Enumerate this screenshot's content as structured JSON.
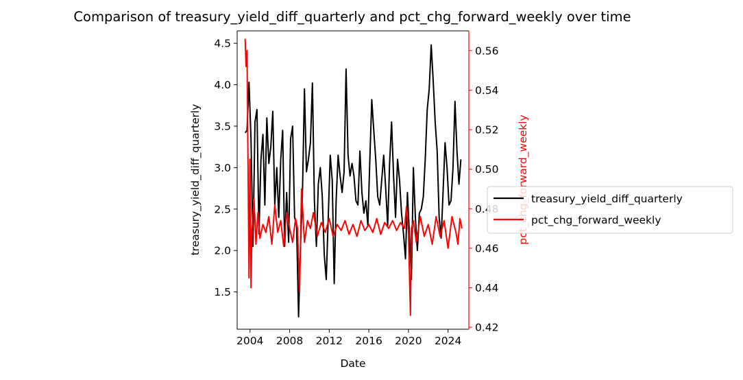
{
  "chart_data": {
    "type": "line",
    "title": "Comparison of treasury_yield_diff_quarterly and pct_chg_forward_weekly over time",
    "xlabel": "Date",
    "ylabel_left": "treasury_yield_diff_quarterly",
    "ylabel_right": "pct_chg_forward_weekly",
    "x_ticks": [
      "2004",
      "2008",
      "2012",
      "2016",
      "2020",
      "2024"
    ],
    "x_tick_years": [
      2004,
      2008,
      2012,
      2016,
      2020,
      2024
    ],
    "xlim": [
      2002.7,
      2026.1
    ],
    "y_left_ticks": [
      "1.5",
      "2.0",
      "2.5",
      "3.0",
      "3.5",
      "4.0",
      "4.5"
    ],
    "y_left_tick_values": [
      1.5,
      2.0,
      2.5,
      3.0,
      3.5,
      4.0,
      4.5
    ],
    "y_left_lim": [
      1.05,
      4.65
    ],
    "y_right_ticks": [
      "0.42",
      "0.44",
      "0.46",
      "0.48",
      "0.50",
      "0.52",
      "0.54",
      "0.56"
    ],
    "y_right_tick_values": [
      0.42,
      0.44,
      0.46,
      0.48,
      0.5,
      0.52,
      0.54,
      0.56
    ],
    "y_right_lim": [
      0.419,
      0.57
    ],
    "legend_position": "right-outside",
    "grid": false,
    "series": [
      {
        "name": "treasury_yield_diff_quarterly",
        "axis": "left",
        "color": "#000000",
        "x": [
          2003.5,
          2003.7,
          2003.9,
          2004.1,
          2004.3,
          2004.5,
          2004.7,
          2004.9,
          2005.1,
          2005.3,
          2005.5,
          2005.7,
          2005.9,
          2006.1,
          2006.3,
          2006.5,
          2006.7,
          2006.9,
          2007.1,
          2007.3,
          2007.5,
          2007.7,
          2007.9,
          2008.1,
          2008.3,
          2008.5,
          2008.7,
          2008.9,
          2009.1,
          2009.3,
          2009.5,
          2009.7,
          2009.9,
          2010.1,
          2010.3,
          2010.5,
          2010.7,
          2010.9,
          2011.1,
          2011.3,
          2011.5,
          2011.7,
          2011.9,
          2012.1,
          2012.3,
          2012.5,
          2012.7,
          2012.9,
          2013.1,
          2013.3,
          2013.5,
          2013.7,
          2013.9,
          2014.1,
          2014.3,
          2014.5,
          2014.7,
          2014.9,
          2015.1,
          2015.3,
          2015.5,
          2015.7,
          2015.9,
          2016.1,
          2016.3,
          2016.5,
          2016.7,
          2016.9,
          2017.1,
          2017.3,
          2017.5,
          2017.7,
          2017.9,
          2018.1,
          2018.3,
          2018.5,
          2018.7,
          2018.9,
          2019.1,
          2019.3,
          2019.5,
          2019.7,
          2019.9,
          2020.1,
          2020.3,
          2020.5,
          2020.7,
          2020.9,
          2021.1,
          2021.3,
          2021.5,
          2021.7,
          2021.9,
          2022.1,
          2022.3,
          2022.5,
          2022.7,
          2022.9,
          2023.1,
          2023.3,
          2023.5,
          2023.7,
          2023.9,
          2024.1,
          2024.3,
          2024.5,
          2024.7,
          2024.9,
          2025.1,
          2025.3
        ],
        "values": [
          3.42,
          3.45,
          4.03,
          3.35,
          2.05,
          3.55,
          3.7,
          2.2,
          3.1,
          3.4,
          2.55,
          3.6,
          3.05,
          3.25,
          3.68,
          2.55,
          3.0,
          2.4,
          3.1,
          3.45,
          2.05,
          2.7,
          2.1,
          3.35,
          3.5,
          2.4,
          2.3,
          1.2,
          2.05,
          2.7,
          3.95,
          2.95,
          3.1,
          3.3,
          4.02,
          2.6,
          2.05,
          2.8,
          3.0,
          2.65,
          1.95,
          1.65,
          2.4,
          3.15,
          2.85,
          1.6,
          2.6,
          3.15,
          2.9,
          2.7,
          2.95,
          4.19,
          3.15,
          2.9,
          3.05,
          2.9,
          2.6,
          2.55,
          3.2,
          2.7,
          2.45,
          2.6,
          2.3,
          3.1,
          3.82,
          3.45,
          3.1,
          2.65,
          2.55,
          2.85,
          3.15,
          2.75,
          2.3,
          3.05,
          3.55,
          2.9,
          2.4,
          3.1,
          2.85,
          2.45,
          2.2,
          1.9,
          2.7,
          2.2,
          1.65,
          3.0,
          2.4,
          2.0,
          2.45,
          2.5,
          2.65,
          3.1,
          3.7,
          3.95,
          4.48,
          4.05,
          3.55,
          3.2,
          2.4,
          2.15,
          2.7,
          3.3,
          3.0,
          2.55,
          2.6,
          3.0,
          3.8,
          3.2,
          2.8,
          3.1
        ]
      },
      {
        "name": "pct_chg_forward_weekly",
        "axis": "right",
        "color": "#ff0000",
        "x": [
          2003.5,
          2003.6,
          2003.7,
          2003.8,
          2003.9,
          2004.0,
          2004.1,
          2004.2,
          2004.4,
          2004.6,
          2004.8,
          2005.0,
          2005.3,
          2005.6,
          2005.9,
          2006.2,
          2006.5,
          2006.8,
          2007.1,
          2007.4,
          2007.7,
          2008.0,
          2008.3,
          2008.6,
          2008.8,
          2009.0,
          2009.2,
          2009.5,
          2009.8,
          2010.1,
          2010.4,
          2010.8,
          2011.2,
          2011.6,
          2012.0,
          2012.4,
          2012.8,
          2013.2,
          2013.6,
          2014.0,
          2014.4,
          2014.8,
          2015.2,
          2015.6,
          2016.0,
          2016.4,
          2016.8,
          2017.2,
          2017.6,
          2018.0,
          2018.4,
          2018.8,
          2019.2,
          2019.6,
          2019.8,
          2020.0,
          2020.2,
          2020.3,
          2020.5,
          2020.8,
          2021.2,
          2021.6,
          2022.0,
          2022.4,
          2022.8,
          2023.2,
          2023.6,
          2024.0,
          2024.4,
          2024.8,
          2025.0,
          2025.2,
          2025.4
        ],
        "values": [
          0.566,
          0.552,
          0.56,
          0.5,
          0.445,
          0.505,
          0.44,
          0.47,
          0.485,
          0.462,
          0.478,
          0.465,
          0.472,
          0.468,
          0.476,
          0.462,
          0.482,
          0.468,
          0.474,
          0.461,
          0.478,
          0.47,
          0.463,
          0.475,
          0.47,
          0.438,
          0.49,
          0.463,
          0.474,
          0.47,
          0.478,
          0.466,
          0.473,
          0.468,
          0.475,
          0.466,
          0.472,
          0.469,
          0.474,
          0.467,
          0.472,
          0.466,
          0.474,
          0.469,
          0.472,
          0.468,
          0.475,
          0.467,
          0.473,
          0.47,
          0.474,
          0.469,
          0.473,
          0.47,
          0.481,
          0.468,
          0.426,
          0.47,
          0.474,
          0.463,
          0.476,
          0.466,
          0.472,
          0.462,
          0.476,
          0.466,
          0.474,
          0.46,
          0.476,
          0.468,
          0.462,
          0.475,
          0.47
        ]
      }
    ]
  }
}
